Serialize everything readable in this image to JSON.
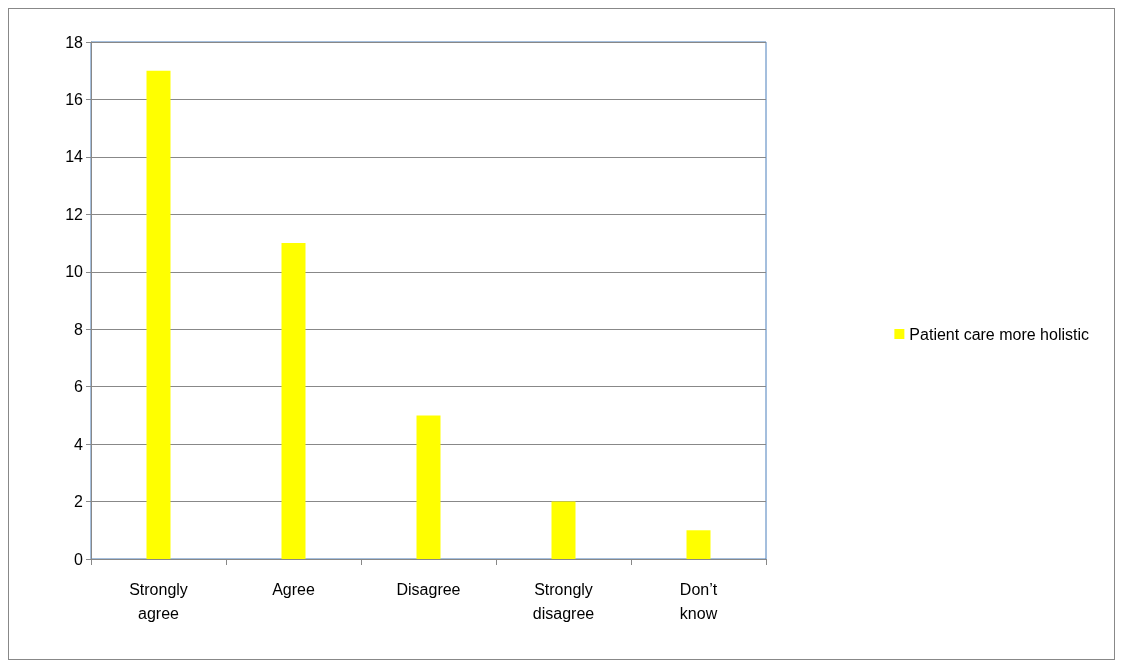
{
  "chart_data": {
    "type": "bar",
    "categories": [
      "Strongly agree",
      "Agree",
      "Disagree",
      "Strongly disagree",
      "Don’t know"
    ],
    "series": [
      {
        "name": "Patient care more holistic",
        "color": "#ffff00",
        "values": [
          17,
          11,
          5,
          2,
          1
        ]
      }
    ],
    "ylim": [
      0,
      18
    ],
    "yticks": [
      0,
      2,
      4,
      6,
      8,
      10,
      12,
      14,
      16,
      18
    ],
    "grid": "y",
    "legend": "right"
  }
}
